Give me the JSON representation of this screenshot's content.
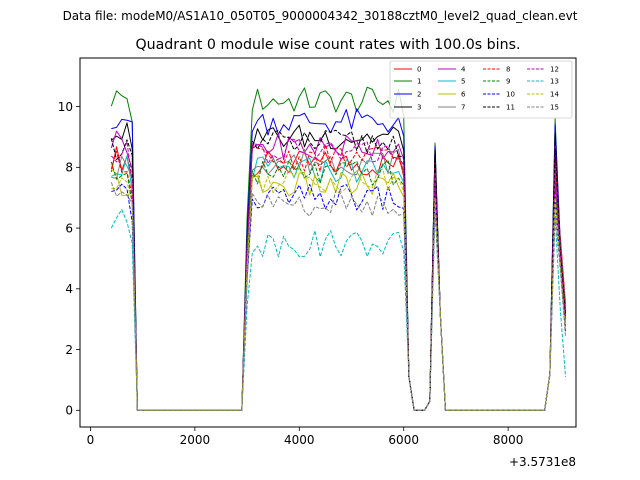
{
  "figure": {
    "suptitle": "Data file: modeM0/AS1A10_050T05_9000004342_30188cztM0_level2_quad_clean.evt"
  },
  "chart_data": {
    "type": "line",
    "title": "Quadrant 0 module wise count rates with 100.0s bins.",
    "xlabel": "",
    "ylabel": "",
    "x_offset_label": "+3.5731e8",
    "xlim": [
      -200,
      9300
    ],
    "ylim": [
      -0.55,
      11.6
    ],
    "x_ticks": [
      0,
      2000,
      4000,
      6000,
      8000
    ],
    "x_tick_labels": [
      "0",
      "2000",
      "4000",
      "6000",
      "8000"
    ],
    "y_ticks": [
      0,
      2,
      4,
      6,
      8,
      10
    ],
    "y_tick_labels": [
      "0",
      "2",
      "4",
      "6",
      "8",
      "10"
    ],
    "legend_position": "top-right",
    "segments": [
      {
        "x0": 400,
        "x1": 800
      },
      {
        "x0": 3000,
        "x1": 6000
      },
      {
        "x0": 6600,
        "x1": 6600
      },
      {
        "x0": 8900,
        "x1": 8900
      }
    ],
    "gap_ranges": [
      [
        900,
        2900
      ],
      [
        6200,
        6400
      ],
      [
        6800,
        8700
      ]
    ],
    "series": [
      {
        "name": "0",
        "color": "#ff0000",
        "dash": "solid",
        "level": 8.1,
        "start": 8.3,
        "peak1": 8.5,
        "peak2": 7.6,
        "end": 3.5
      },
      {
        "name": "1",
        "color": "#008000",
        "dash": "solid",
        "level": 10.2,
        "start": 10.3,
        "peak1": 8.8,
        "peak2": 9.6,
        "end": 3.0
      },
      {
        "name": "2",
        "color": "#0000ff",
        "dash": "solid",
        "level": 9.5,
        "start": 9.7,
        "peak1": 8.7,
        "peak2": 9.4,
        "end": 3.3
      },
      {
        "name": "3",
        "color": "#000000",
        "dash": "solid",
        "level": 9.0,
        "start": 9.1,
        "peak1": 8.6,
        "peak2": 9.1,
        "end": 3.1
      },
      {
        "name": "4",
        "color": "#bf00bf",
        "dash": "solid",
        "level": 8.7,
        "start": 8.9,
        "peak1": 8.0,
        "peak2": 8.7,
        "end": 3.2
      },
      {
        "name": "5",
        "color": "#00bfbf",
        "dash": "solid",
        "level": 7.9,
        "start": 8.1,
        "peak1": 7.9,
        "peak2": 8.0,
        "end": 3.3
      },
      {
        "name": "6",
        "color": "#bfbf00",
        "dash": "solid",
        "level": 7.4,
        "start": 7.5,
        "peak1": 7.4,
        "peak2": 7.3,
        "end": 3.0
      },
      {
        "name": "7",
        "color": "#808080",
        "dash": "solid",
        "level": 8.2,
        "start": 8.0,
        "peak1": 7.7,
        "peak2": 7.7,
        "end": 3.0
      },
      {
        "name": "8",
        "color": "#ff0000",
        "dash": "dashed",
        "level": 8.3,
        "start": 8.1,
        "peak1": 8.2,
        "peak2": 8.2,
        "end": 3.2
      },
      {
        "name": "9",
        "color": "#008000",
        "dash": "dashed",
        "level": 7.8,
        "start": 7.8,
        "peak1": 7.6,
        "peak2": 7.4,
        "end": 2.7
      },
      {
        "name": "10",
        "color": "#0000ff",
        "dash": "dashed",
        "level": 7.0,
        "start": 7.0,
        "peak1": 7.2,
        "peak2": 7.0,
        "end": 2.6
      },
      {
        "name": "11",
        "color": "#000000",
        "dash": "dashed",
        "level": 8.8,
        "start": 8.7,
        "peak1": 8.3,
        "peak2": 8.6,
        "end": 3.1
      },
      {
        "name": "12",
        "color": "#bf00bf",
        "dash": "dashed",
        "level": 8.5,
        "start": 8.4,
        "peak1": 7.8,
        "peak2": 7.8,
        "end": 2.8
      },
      {
        "name": "13",
        "color": "#00bfbf",
        "dash": "dashed",
        "level": 5.5,
        "start": 6.2,
        "peak1": 6.6,
        "peak2": 6.4,
        "end": 1.1
      },
      {
        "name": "14",
        "color": "#bfbf00",
        "dash": "dashed",
        "level": 7.6,
        "start": 7.3,
        "peak1": 7.0,
        "peak2": 7.0,
        "end": 2.6
      },
      {
        "name": "15",
        "color": "#808080",
        "dash": "dashed",
        "level": 6.8,
        "start": 7.4,
        "peak1": 6.7,
        "peak2": 6.5,
        "end": 2.4
      }
    ]
  }
}
